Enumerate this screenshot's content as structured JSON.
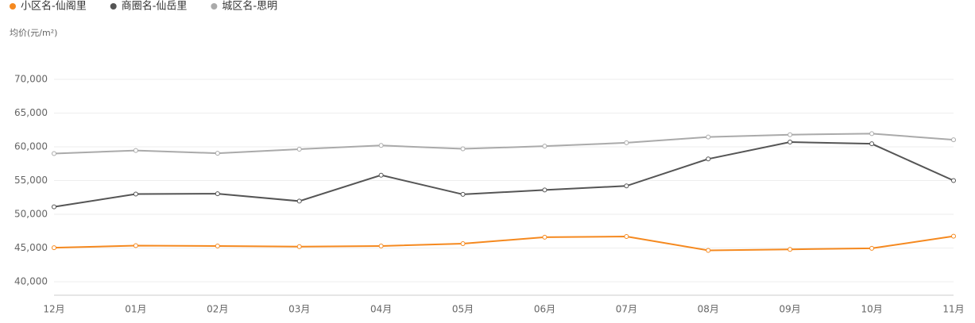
{
  "chart_data": {
    "type": "line",
    "y_label": "均价(元/m²)",
    "categories": [
      "12月",
      "01月",
      "02月",
      "03月",
      "04月",
      "05月",
      "06月",
      "07月",
      "08月",
      "09月",
      "10月",
      "11月"
    ],
    "series": [
      {
        "name": "小区名-仙阁里",
        "color": "#f5891f",
        "values": [
          45050,
          45350,
          45300,
          45200,
          45300,
          45650,
          46600,
          46700,
          44650,
          44800,
          44950,
          46750
        ]
      },
      {
        "name": "商圈名-仙岳里",
        "color": "#555555",
        "values": [
          51100,
          53000,
          53050,
          51950,
          55800,
          52950,
          53600,
          54200,
          58200,
          60700,
          60450,
          55000
        ]
      },
      {
        "name": "城区名-思明",
        "color": "#aaaaaa",
        "values": [
          59000,
          59450,
          59050,
          59650,
          60200,
          59700,
          60100,
          60600,
          61450,
          61800,
          61950,
          61050
        ]
      }
    ],
    "ylim": [
      38000,
      71000
    ],
    "yticks": [
      {
        "value": 40000,
        "label": "40,000"
      },
      {
        "value": 45000,
        "label": "45,000"
      },
      {
        "value": 50000,
        "label": "50,000"
      },
      {
        "value": 55000,
        "label": "55,000"
      },
      {
        "value": 60000,
        "label": "60,000"
      },
      {
        "value": 65000,
        "label": "65,000"
      },
      {
        "value": 70000,
        "label": "70,000"
      }
    ],
    "grid": true
  }
}
